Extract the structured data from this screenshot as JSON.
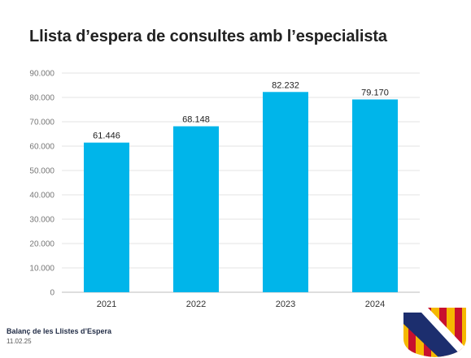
{
  "chart_data": {
    "type": "bar",
    "title": "Llista d’espera de consultes amb l’especialista",
    "categories": [
      "2021",
      "2022",
      "2023",
      "2024"
    ],
    "values": [
      61446,
      68148,
      82232,
      79170
    ],
    "value_labels": [
      "61.446",
      "68.148",
      "82.232",
      "79.170"
    ],
    "ylim": [
      0,
      90000
    ],
    "yticks": [
      0,
      10000,
      20000,
      30000,
      40000,
      50000,
      60000,
      70000,
      80000,
      90000
    ],
    "ytick_labels": [
      "0",
      "10.000",
      "20.000",
      "30.000",
      "40.000",
      "50.000",
      "60.000",
      "70.000",
      "80.000",
      "90.000"
    ],
    "xlabel": "",
    "ylabel": "",
    "grid": true,
    "legend": "none",
    "bar_color": "#00b5ea"
  },
  "footer": {
    "title": "Balanç de les Llistes d’Espera",
    "date": "11.02.25"
  },
  "logo": {
    "icon": "balearic-coat-of-arms-icon",
    "colors": {
      "gold": "#f5b800",
      "red": "#c8102e",
      "blue": "#1c2e6e"
    }
  }
}
